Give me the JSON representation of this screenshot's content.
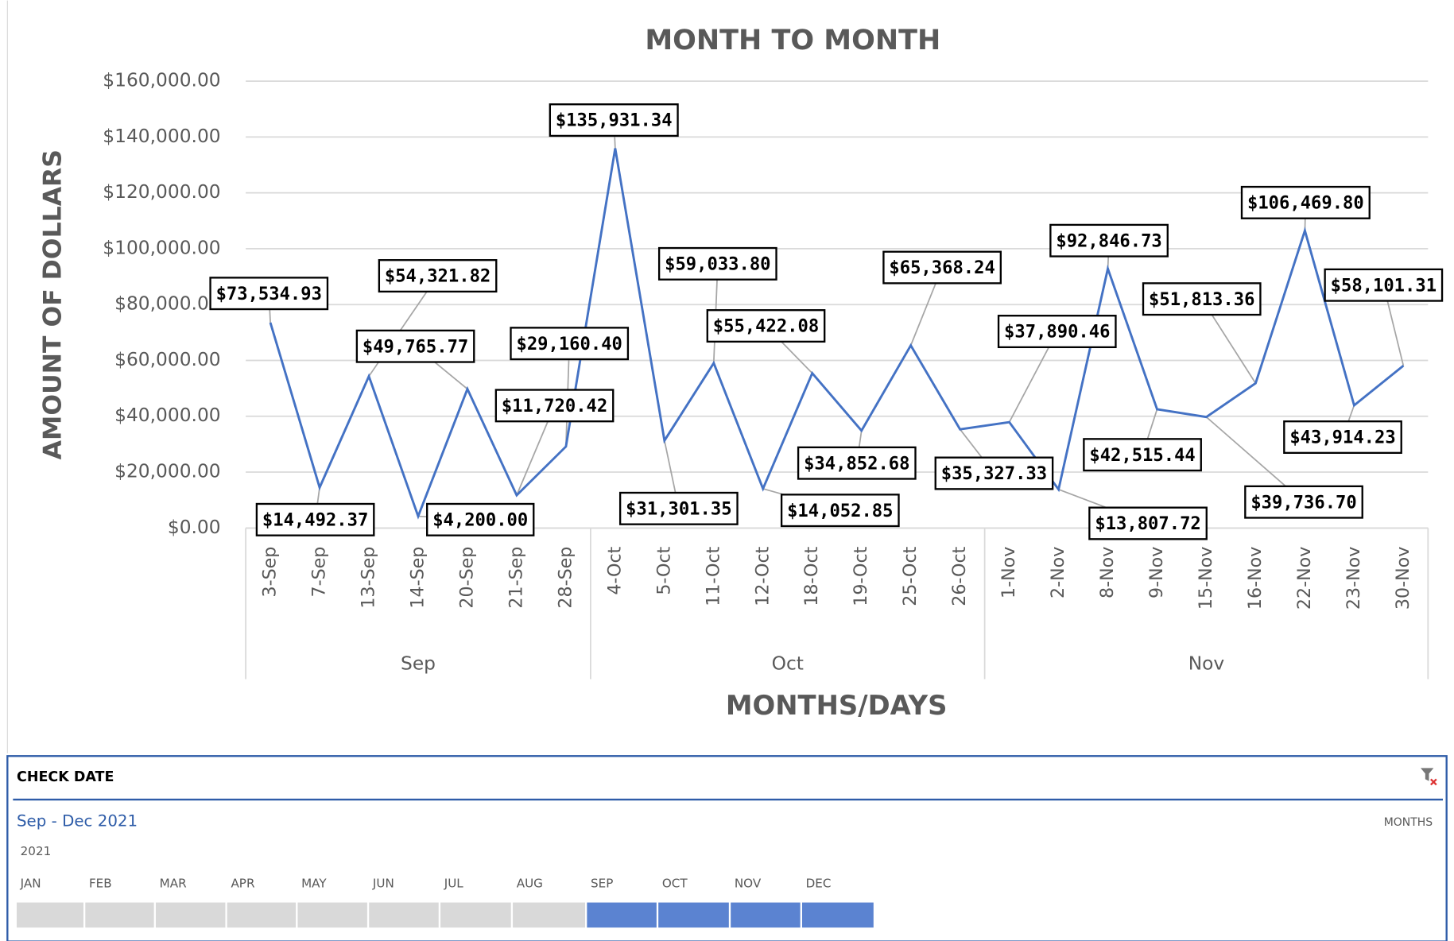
{
  "chart_data": {
    "type": "line",
    "title": "MONTH TO MONTH",
    "y_label": "AMOUNT OF DOLLARS",
    "x_label": "MONTHS/DAYS",
    "categories": [
      "3-Sep",
      "7-Sep",
      "13-Sep",
      "14-Sep",
      "20-Sep",
      "21-Sep",
      "28-Sep",
      "4-Oct",
      "5-Oct",
      "11-Oct",
      "12-Oct",
      "18-Oct",
      "19-Oct",
      "25-Oct",
      "26-Oct",
      "1-Nov",
      "2-Nov",
      "8-Nov",
      "9-Nov",
      "15-Nov",
      "16-Nov",
      "22-Nov",
      "23-Nov",
      "30-Nov"
    ],
    "groups": [
      {
        "label": "Sep",
        "count": 7
      },
      {
        "label": "Oct",
        "count": 8
      },
      {
        "label": "Nov",
        "count": 9
      }
    ],
    "series": [
      {
        "name": "Amount",
        "color": "#4472c4",
        "values": [
          73534.93,
          14492.37,
          54321.82,
          4200.0,
          49765.77,
          11720.42,
          29160.4,
          135931.34,
          31301.35,
          59033.8,
          14052.85,
          55422.08,
          34852.68,
          65368.24,
          35327.33,
          37890.46,
          13807.72,
          92846.73,
          42515.44,
          39736.7,
          51813.36,
          106469.8,
          43914.23,
          58101.31
        ],
        "value_labels": [
          "$73,534.93",
          "$14,492.37",
          "$54,321.82",
          "$4,200.00",
          "$49,765.77",
          "$11,720.42",
          "$29,160.40",
          "$135,931.34",
          "$31,301.35",
          "$59,033.80",
          "$14,052.85",
          "$55,422.08",
          "$34,852.68",
          "$65,368.24",
          "$35,327.33",
          "$37,890.46",
          "$13,807.72",
          "$92,846.73",
          "$42,515.44",
          "$39,736.70",
          "$51,813.36",
          "$106,469.80",
          "$43,914.23",
          "$58,101.31"
        ]
      }
    ],
    "ylim": [
      0,
      160000
    ],
    "yticks": [
      {
        "value": 0,
        "label": "$0.00"
      },
      {
        "value": 20000,
        "label": "$20,000.00"
      },
      {
        "value": 40000,
        "label": "$40,000.00"
      },
      {
        "value": 60000,
        "label": "$60,000.00"
      },
      {
        "value": 80000,
        "label": "$80,000.00"
      },
      {
        "value": 100000,
        "label": "$100,000.00"
      },
      {
        "value": 120000,
        "label": "$120,000.00"
      },
      {
        "value": 140000,
        "label": "$140,000.00"
      },
      {
        "value": 160000,
        "label": "$160,000.00"
      }
    ],
    "grid": true
  },
  "slicer": {
    "title": "CHECK DATE",
    "range": "Sep - Dec 2021",
    "level": "MONTHS",
    "year": "2021",
    "months": [
      "JAN",
      "FEB",
      "MAR",
      "APR",
      "MAY",
      "JUN",
      "JUL",
      "AUG",
      "SEP",
      "OCT",
      "NOV",
      "DEC"
    ],
    "selected": [
      false,
      false,
      false,
      false,
      false,
      false,
      false,
      false,
      true,
      true,
      true,
      true
    ]
  }
}
